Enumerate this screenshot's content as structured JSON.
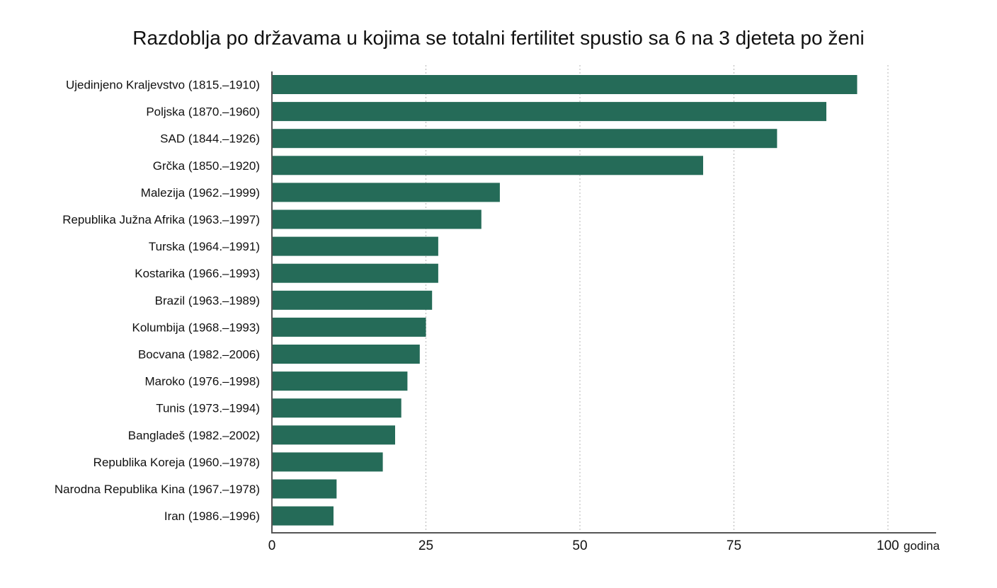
{
  "chart_data": {
    "type": "bar",
    "orientation": "horizontal",
    "title": "Razdoblja po državama u kojima se totalni fertilitet spustio sa 6 na 3 djeteta po ženi",
    "categories": [
      "Ujedinjeno Kraljevstvo (1815.–1910)",
      "Poljska  (1870.–1960)",
      "SAD  (1844.–1926)",
      "Grčka  (1850.–1920)",
      "Malezija (1962.–1999)",
      "Republika Južna Afrika (1963.–1997)",
      "Turska (1964.–1991)",
      "Kostarika (1966.–1993)",
      "Brazil (1963.–1989)",
      "Kolumbija (1968.–1993)",
      "Bocvana (1982.–2006)",
      "Maroko (1976.–1998)",
      "Tunis (1973.–1994)",
      "Bangladeš (1982.–2002)",
      "Republika Koreja (1960.–1978)",
      "Narodna Republika Kina (1967.–1978)",
      "Iran (1986.–1996)"
    ],
    "values": [
      95,
      90,
      82,
      70,
      37,
      34,
      27,
      27,
      26,
      25,
      24,
      22,
      21,
      20,
      18,
      10.5,
      10
    ],
    "xlim": [
      0,
      105
    ],
    "xticks": [
      0,
      25,
      50,
      75,
      100
    ],
    "xtick_labels": [
      "0",
      "25",
      "50",
      "75",
      "100"
    ],
    "x_unit": "godina",
    "grid": "vertical dotted",
    "bar_color": "#256b58"
  }
}
